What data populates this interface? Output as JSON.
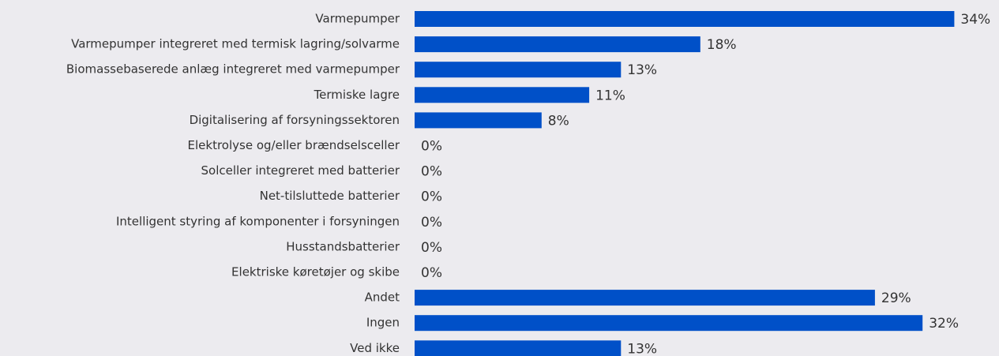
{
  "chart_data": {
    "type": "bar",
    "orientation": "horizontal",
    "categories": [
      "Varmepumper",
      "Varmepumper integreret med termisk lagring/solvarme",
      "Biomassebaserede anlæg integreret med varmepumper",
      "Termiske lagre",
      "Digitalisering af forsyningssektoren",
      "Elektrolyse og/eller brændselsceller",
      "Solceller integreret med batterier",
      "Net-tilsluttede batterier",
      "Intelligent styring af komponenter i forsyningen",
      "Husstandsbatterier",
      "Elektriske køretøjer og skibe",
      "Andet",
      "Ingen",
      "Ved ikke"
    ],
    "values": [
      34,
      18,
      13,
      11,
      8,
      0,
      0,
      0,
      0,
      0,
      0,
      29,
      32,
      13
    ],
    "value_labels": [
      "34%",
      "18%",
      "13%",
      "11%",
      "8%",
      "0%",
      "0%",
      "0%",
      "0%",
      "0%",
      "0%",
      "29%",
      "32%",
      "13%"
    ],
    "color": "#0050c8"
  }
}
